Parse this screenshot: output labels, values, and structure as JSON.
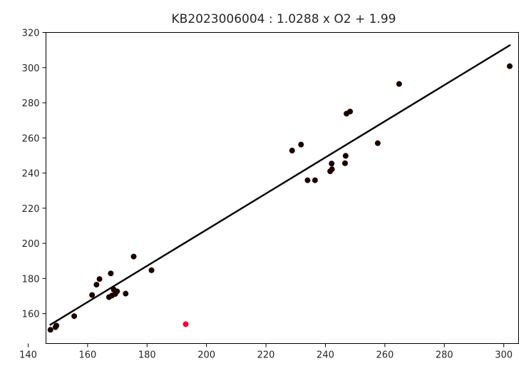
{
  "chart_data": {
    "type": "scatter",
    "title": "KB2023006004 : 1.0288 x O2 + 1.99",
    "xlabel": "",
    "ylabel": "",
    "xlim": [
      146,
      305
    ],
    "ylim": [
      143,
      320
    ],
    "x_ticks": [
      140,
      160,
      180,
      200,
      220,
      240,
      260,
      280,
      300
    ],
    "y_ticks": [
      160,
      180,
      200,
      220,
      240,
      260,
      280,
      300,
      320
    ],
    "grid": false,
    "legend": "none",
    "colors": {
      "point": "#1a0000",
      "outlier": "#ff0033",
      "line": "#000000",
      "axis": "#000000",
      "text": "#262626"
    },
    "fit_line": {
      "slope": 1.0288,
      "intercept": 1.99,
      "x_start": 147.5,
      "x_end": 302
    },
    "series": [
      {
        "name": "",
        "points": [
          {
            "x": 147.5,
            "y": 150.8
          },
          {
            "x": 149.2,
            "y": 152.3
          },
          {
            "x": 149.5,
            "y": 153.2
          },
          {
            "x": 155.5,
            "y": 158.6
          },
          {
            "x": 161.5,
            "y": 170.6
          },
          {
            "x": 163.0,
            "y": 176.5
          },
          {
            "x": 164.0,
            "y": 179.7
          },
          {
            "x": 167.2,
            "y": 169.4
          },
          {
            "x": 167.8,
            "y": 182.9
          },
          {
            "x": 168.2,
            "y": 170.3
          },
          {
            "x": 168.8,
            "y": 173.7
          },
          {
            "x": 169.3,
            "y": 171.2
          },
          {
            "x": 169.9,
            "y": 172.7
          },
          {
            "x": 172.8,
            "y": 171.4
          },
          {
            "x": 175.5,
            "y": 192.5
          },
          {
            "x": 181.5,
            "y": 184.7
          },
          {
            "x": 228.8,
            "y": 252.8
          },
          {
            "x": 231.8,
            "y": 256.2
          },
          {
            "x": 234.0,
            "y": 235.9
          },
          {
            "x": 236.5,
            "y": 235.9
          },
          {
            "x": 241.6,
            "y": 241.0
          },
          {
            "x": 242.2,
            "y": 242.2
          },
          {
            "x": 242.1,
            "y": 245.4
          },
          {
            "x": 246.6,
            "y": 245.6
          },
          {
            "x": 246.8,
            "y": 249.8
          },
          {
            "x": 247.1,
            "y": 273.8
          },
          {
            "x": 248.3,
            "y": 275.0
          },
          {
            "x": 257.6,
            "y": 257.0
          },
          {
            "x": 264.8,
            "y": 290.7
          },
          {
            "x": 302.0,
            "y": 300.8
          }
        ]
      },
      {
        "name": "",
        "points": [
          {
            "x": 193.0,
            "y": 154.0
          }
        ]
      }
    ]
  }
}
